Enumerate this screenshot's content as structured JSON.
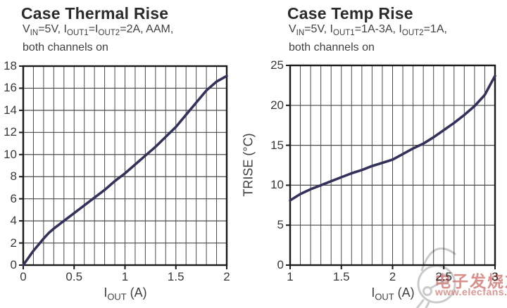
{
  "style": {
    "line_color": "#32325A",
    "grid_color": "#4a4a4a",
    "border_color": "#1a1a1a",
    "text_color": "#3b3b3b"
  },
  "watermark": {
    "text": "电子发烧友",
    "url": "www.elecfans.com",
    "text_color": "#d27d78",
    "logo_icon": "elecfans-sketch-logo",
    "logo_color": "#c8c8c8"
  },
  "chart_data": [
    {
      "type": "line",
      "title": "Case Thermal Rise",
      "subtitle_lines": [
        [
          {
            "t": "V"
          },
          {
            "s": "IN"
          },
          {
            "t": "=5V, I"
          },
          {
            "s": "OUT1"
          },
          {
            "t": "=I"
          },
          {
            "s": "OUT2"
          },
          {
            "t": "=2A, AAM,"
          }
        ],
        [
          {
            "t": "both channels on"
          }
        ]
      ],
      "xlabel_segments": [
        {
          "t": "I"
        },
        {
          "s": "OUT"
        },
        {
          "t": " (A)"
        }
      ],
      "xlim": [
        0,
        2
      ],
      "ylim": [
        0,
        18
      ],
      "xticks": [
        "0",
        "0.5",
        "1",
        "1.5",
        "2"
      ],
      "yticks": [
        0,
        2,
        4,
        6,
        8,
        10,
        12,
        14,
        16,
        18
      ],
      "x_minor_step": 0.1,
      "grid": true,
      "legend": "none",
      "series": [
        {
          "name": "case thermal rise",
          "points": [
            [
              0,
              0
            ],
            [
              0.1,
              1.3
            ],
            [
              0.2,
              2.4
            ],
            [
              0.25,
              2.9
            ],
            [
              0.3,
              3.3
            ],
            [
              0.4,
              4.0
            ],
            [
              0.5,
              4.7
            ],
            [
              0.6,
              5.4
            ],
            [
              0.7,
              6.1
            ],
            [
              0.8,
              6.8
            ],
            [
              0.9,
              7.6
            ],
            [
              1.0,
              8.3
            ],
            [
              1.1,
              9.1
            ],
            [
              1.2,
              9.9
            ],
            [
              1.3,
              10.7
            ],
            [
              1.4,
              11.6
            ],
            [
              1.5,
              12.5
            ],
            [
              1.6,
              13.6
            ],
            [
              1.7,
              14.7
            ],
            [
              1.8,
              15.8
            ],
            [
              1.9,
              16.6
            ],
            [
              2.0,
              17.1
            ]
          ]
        }
      ]
    },
    {
      "type": "line",
      "title": "Case Temp Rise",
      "subtitle_lines": [
        [
          {
            "t": "V"
          },
          {
            "s": "IN"
          },
          {
            "t": "=5V, I"
          },
          {
            "s": "OUT1"
          },
          {
            "t": "=1A-3A, I"
          },
          {
            "s": "OUT2"
          },
          {
            "t": "=1A,"
          }
        ],
        [
          {
            "t": "both channels on"
          }
        ]
      ],
      "xlabel_segments": [
        {
          "t": "I"
        },
        {
          "s": "OUT"
        },
        {
          "t": " (A)"
        }
      ],
      "ylabel": "TRISE (°C)",
      "xlim": [
        1,
        3
      ],
      "ylim": [
        0,
        25
      ],
      "xticks": [
        "1",
        "1.5",
        "2",
        "2.5",
        "3"
      ],
      "yticks": [
        0,
        5,
        10,
        15,
        20,
        25
      ],
      "x_minor_step": 0.1,
      "grid": true,
      "legend": "none",
      "series": [
        {
          "name": "case temp rise",
          "points": [
            [
              1.0,
              8.1
            ],
            [
              1.1,
              8.9
            ],
            [
              1.2,
              9.5
            ],
            [
              1.3,
              10.0
            ],
            [
              1.4,
              10.5
            ],
            [
              1.5,
              11.0
            ],
            [
              1.6,
              11.5
            ],
            [
              1.7,
              11.9
            ],
            [
              1.8,
              12.4
            ],
            [
              1.9,
              12.8
            ],
            [
              2.0,
              13.2
            ],
            [
              2.1,
              13.9
            ],
            [
              2.2,
              14.6
            ],
            [
              2.3,
              15.2
            ],
            [
              2.4,
              16.0
            ],
            [
              2.5,
              16.9
            ],
            [
              2.6,
              17.8
            ],
            [
              2.7,
              18.8
            ],
            [
              2.8,
              19.9
            ],
            [
              2.9,
              21.3
            ],
            [
              3.0,
              23.7
            ]
          ]
        }
      ]
    }
  ]
}
